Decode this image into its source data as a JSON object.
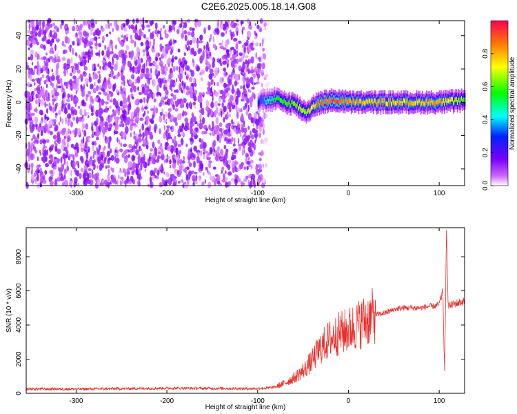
{
  "figure": {
    "title": "C2E6.2025.005.18.14.G08"
  },
  "chart_data": [
    {
      "type": "heatmap",
      "xlabel": "Height of straight line (km)",
      "ylabel": "Frequency (Hz)",
      "xlim": [
        -355,
        128
      ],
      "ylim": [
        -50,
        49
      ],
      "xticks": [
        -300,
        -200,
        -100,
        0,
        100
      ],
      "yticks": [
        -40,
        -20,
        0,
        20,
        40
      ],
      "colorbar": {
        "label": "Normalized spectral amplitude",
        "range": [
          0,
          1
        ],
        "ticks": [
          0.0,
          0.2,
          0.4,
          0.6,
          0.8
        ],
        "colormap": "rainbow"
      },
      "noise_region": {
        "x": [
          -355,
          -100
        ],
        "fade_x": [
          -100,
          -88
        ],
        "amplitude": 0.15
      },
      "signal_track": {
        "x": [
          -100,
          -90,
          -80,
          -70,
          -60,
          -50,
          -45,
          -40,
          -30,
          -20,
          -10,
          0,
          20,
          40,
          60,
          80,
          100,
          128
        ],
        "f": [
          0,
          1,
          2,
          0,
          -1,
          -5,
          -6,
          -2,
          0,
          1,
          1,
          0,
          0,
          0,
          0,
          0,
          0,
          1
        ],
        "amp": [
          0.3,
          0.45,
          0.55,
          0.6,
          0.65,
          0.7,
          0.65,
          0.75,
          0.9,
          0.95,
          0.9,
          0.85,
          0.8,
          0.8,
          0.78,
          0.78,
          0.85,
          0.6
        ]
      }
    },
    {
      "type": "line",
      "xlabel": "Height of straight line (km)",
      "ylabel": "SNR (10 * v/v)",
      "xlim": [
        -355,
        128
      ],
      "ylim": [
        0,
        9700
      ],
      "xticks": [
        -300,
        -200,
        -100,
        0,
        100
      ],
      "yticks": [
        0,
        2000,
        4000,
        6000,
        8000
      ],
      "color": "#e8312c",
      "series": [
        {
          "x": [
            -355,
            -300,
            -250,
            -200,
            -150,
            -110,
            -100,
            -90,
            -80,
            -70,
            -60,
            -50,
            -40,
            -30,
            -20,
            -10,
            0,
            10,
            20,
            30,
            40,
            50,
            60,
            70,
            80,
            90,
            95,
            100,
            104,
            106,
            108,
            110,
            115,
            128
          ],
          "values": [
            250,
            250,
            270,
            300,
            290,
            270,
            280,
            300,
            380,
            600,
            900,
            1300,
            1900,
            2700,
            3200,
            3500,
            3700,
            4000,
            4300,
            4600,
            4700,
            4900,
            5000,
            5000,
            5000,
            5100,
            5100,
            5200,
            6000,
            1000,
            9500,
            5100,
            5200,
            5400
          ]
        }
      ]
    }
  ]
}
